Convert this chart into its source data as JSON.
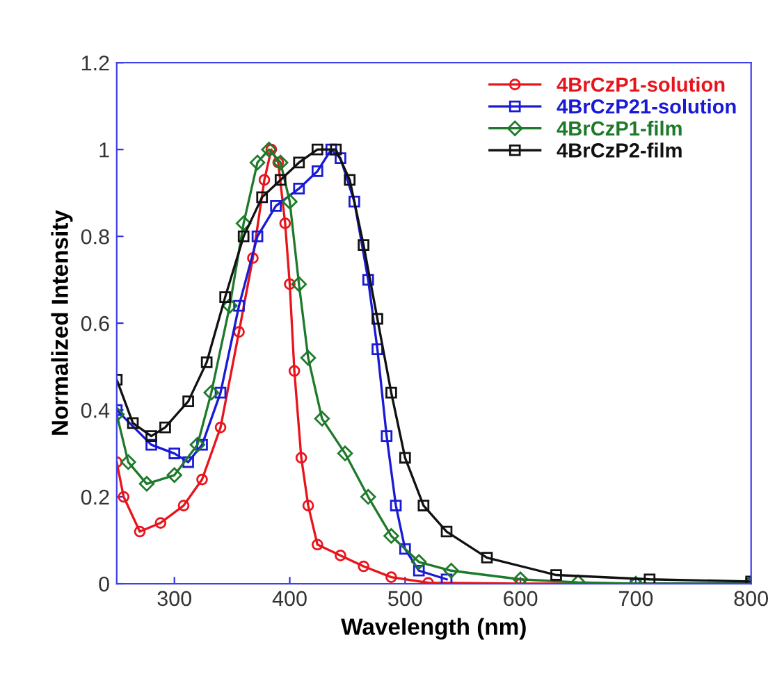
{
  "chart_data": {
    "type": "line",
    "xlabel": "Wavelength (nm)",
    "ylabel": "Normalized Intensity",
    "xlim": [
      250,
      800
    ],
    "xticks": [
      300,
      400,
      500,
      600,
      700,
      800
    ],
    "ylim": [
      0,
      1.2
    ],
    "yticks": [
      0,
      0.2,
      0.4,
      0.6,
      0.8,
      1,
      1.2
    ],
    "grid": false,
    "legend": "top right",
    "line_style": "solid",
    "series": [
      {
        "name": "4BrCzP1-solution",
        "color": "#e8141c",
        "marker": "circle",
        "x": [
          250,
          256,
          270,
          288,
          308,
          324,
          340,
          356,
          368,
          378,
          384,
          390,
          396,
          400,
          404,
          410,
          416,
          424,
          444,
          464,
          488,
          520,
          600,
          700,
          800
        ],
        "values": [
          0.28,
          0.2,
          0.12,
          0.14,
          0.18,
          0.24,
          0.36,
          0.58,
          0.75,
          0.93,
          1.0,
          0.97,
          0.83,
          0.69,
          0.49,
          0.29,
          0.18,
          0.09,
          0.065,
          0.04,
          0.015,
          0.002,
          0,
          0,
          0
        ]
      },
      {
        "name": "4BrCzP21-solution",
        "color": "#1a1ad6",
        "marker": "square",
        "x": [
          250,
          280,
          300,
          312,
          324,
          340,
          356,
          372,
          388,
          408,
          424,
          436,
          444,
          456,
          468,
          476,
          484,
          492,
          500,
          512,
          536,
          600,
          700,
          800
        ],
        "values": [
          0.4,
          0.32,
          0.3,
          0.28,
          0.32,
          0.44,
          0.64,
          0.8,
          0.87,
          0.91,
          0.95,
          1.0,
          0.98,
          0.88,
          0.7,
          0.54,
          0.34,
          0.18,
          0.08,
          0.03,
          0.01,
          null,
          0,
          0
        ]
      },
      {
        "name": "4BrCzP1-film",
        "color": "#1e7a2a",
        "marker": "diamond",
        "x": [
          250,
          260,
          276,
          300,
          320,
          332,
          348,
          360,
          372,
          382,
          392,
          400,
          408,
          416,
          428,
          448,
          468,
          488,
          512,
          540,
          600,
          650,
          700,
          800
        ],
        "values": [
          0.39,
          0.28,
          0.23,
          0.25,
          0.32,
          0.44,
          0.64,
          0.83,
          0.97,
          1.0,
          0.97,
          0.88,
          0.69,
          0.52,
          0.38,
          0.3,
          0.2,
          0.11,
          0.05,
          0.03,
          0.01,
          0.003,
          0,
          0
        ]
      },
      {
        "name": "4BrCzP2-film",
        "color": "#111111",
        "marker": "square",
        "x": [
          250,
          264,
          280,
          292,
          312,
          328,
          344,
          360,
          376,
          392,
          408,
          424,
          440,
          452,
          464,
          476,
          488,
          500,
          516,
          536,
          571,
          631,
          712,
          800
        ],
        "values": [
          0.47,
          0.37,
          0.34,
          0.36,
          0.42,
          0.51,
          0.66,
          0.8,
          0.89,
          0.93,
          0.97,
          1.0,
          1.0,
          0.93,
          0.78,
          0.61,
          0.44,
          0.29,
          0.18,
          0.12,
          0.06,
          0.02,
          0.01,
          0.005
        ]
      }
    ]
  }
}
